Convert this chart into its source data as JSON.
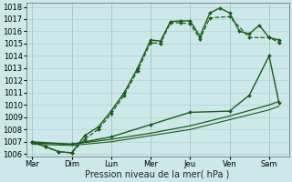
{
  "xlabel": "Pression niveau de la mer( hPa )",
  "background_color": "#cce8e8",
  "grid_color": "#aacccc",
  "line_color": "#1a5c1a",
  "xtick_labels": [
    "Mar",
    "Dim",
    "Lun",
    "Mer",
    "Jeu",
    "Ven",
    "Sam"
  ],
  "yticks": [
    1006,
    1007,
    1008,
    1009,
    1010,
    1011,
    1012,
    1013,
    1014,
    1015,
    1016,
    1017,
    1018
  ],
  "xtick_positions": [
    0,
    1,
    2,
    3,
    4,
    5,
    6
  ],
  "xlim": [
    -0.15,
    6.5
  ],
  "ylim": [
    1005.8,
    1018.3
  ],
  "fontsize": 7,
  "tick_fontsize": 6,
  "series": [
    {
      "x": [
        0,
        0.33,
        0.67,
        1.0,
        1.33,
        1.67,
        2.0,
        2.33,
        2.67,
        3.0,
        3.25,
        3.5,
        3.75,
        4.0,
        4.25,
        4.5,
        4.75,
        5.0,
        5.25,
        5.5,
        5.75,
        6.0,
        6.25
      ],
      "y": [
        1007.0,
        1006.6,
        1006.2,
        1006.1,
        1007.5,
        1008.2,
        1009.5,
        1011.0,
        1013.0,
        1015.3,
        1015.2,
        1016.8,
        1016.85,
        1016.85,
        1015.6,
        1017.5,
        1017.9,
        1017.5,
        1016.0,
        1015.8,
        1016.5,
        1015.5,
        1015.3
      ],
      "ls": "-",
      "marker": "D",
      "ms": 2.0,
      "lw": 1.0,
      "zorder": 5
    },
    {
      "x": [
        0,
        0.33,
        0.67,
        1.0,
        1.33,
        1.67,
        2.0,
        2.33,
        2.67,
        3.0,
        3.25,
        3.5,
        3.75,
        4.0,
        4.25,
        4.5,
        5.0,
        5.5,
        6.0,
        6.25
      ],
      "y": [
        1007.0,
        1006.6,
        1006.2,
        1006.1,
        1007.2,
        1008.0,
        1009.3,
        1010.8,
        1012.8,
        1015.1,
        1015.0,
        1016.7,
        1016.7,
        1016.6,
        1015.4,
        1017.1,
        1017.2,
        1015.5,
        1015.5,
        1015.1
      ],
      "ls": "--",
      "marker": "D",
      "ms": 2.0,
      "lw": 0.9,
      "zorder": 4
    },
    {
      "x": [
        0,
        1.0,
        2.0,
        3.0,
        4.0,
        5.0,
        5.5,
        6.0,
        6.25
      ],
      "y": [
        1007.0,
        1006.8,
        1007.4,
        1008.4,
        1009.4,
        1009.5,
        1010.8,
        1014.0,
        1010.2
      ],
      "ls": "-",
      "marker": "D",
      "ms": 2.0,
      "lw": 1.0,
      "zorder": 3
    },
    {
      "x": [
        0,
        1.0,
        2.0,
        3.0,
        4.0,
        5.0,
        6.0,
        6.25
      ],
      "y": [
        1006.9,
        1006.8,
        1007.2,
        1007.7,
        1008.3,
        1009.1,
        1010.0,
        1010.3
      ],
      "ls": "-",
      "marker": null,
      "ms": 0,
      "lw": 0.9,
      "zorder": 2
    },
    {
      "x": [
        0,
        1.0,
        2.0,
        3.0,
        4.0,
        5.0,
        6.0,
        6.25
      ],
      "y": [
        1006.8,
        1006.7,
        1007.0,
        1007.5,
        1008.0,
        1008.8,
        1009.6,
        1009.9
      ],
      "ls": "-",
      "marker": null,
      "ms": 0,
      "lw": 0.8,
      "zorder": 1
    }
  ]
}
